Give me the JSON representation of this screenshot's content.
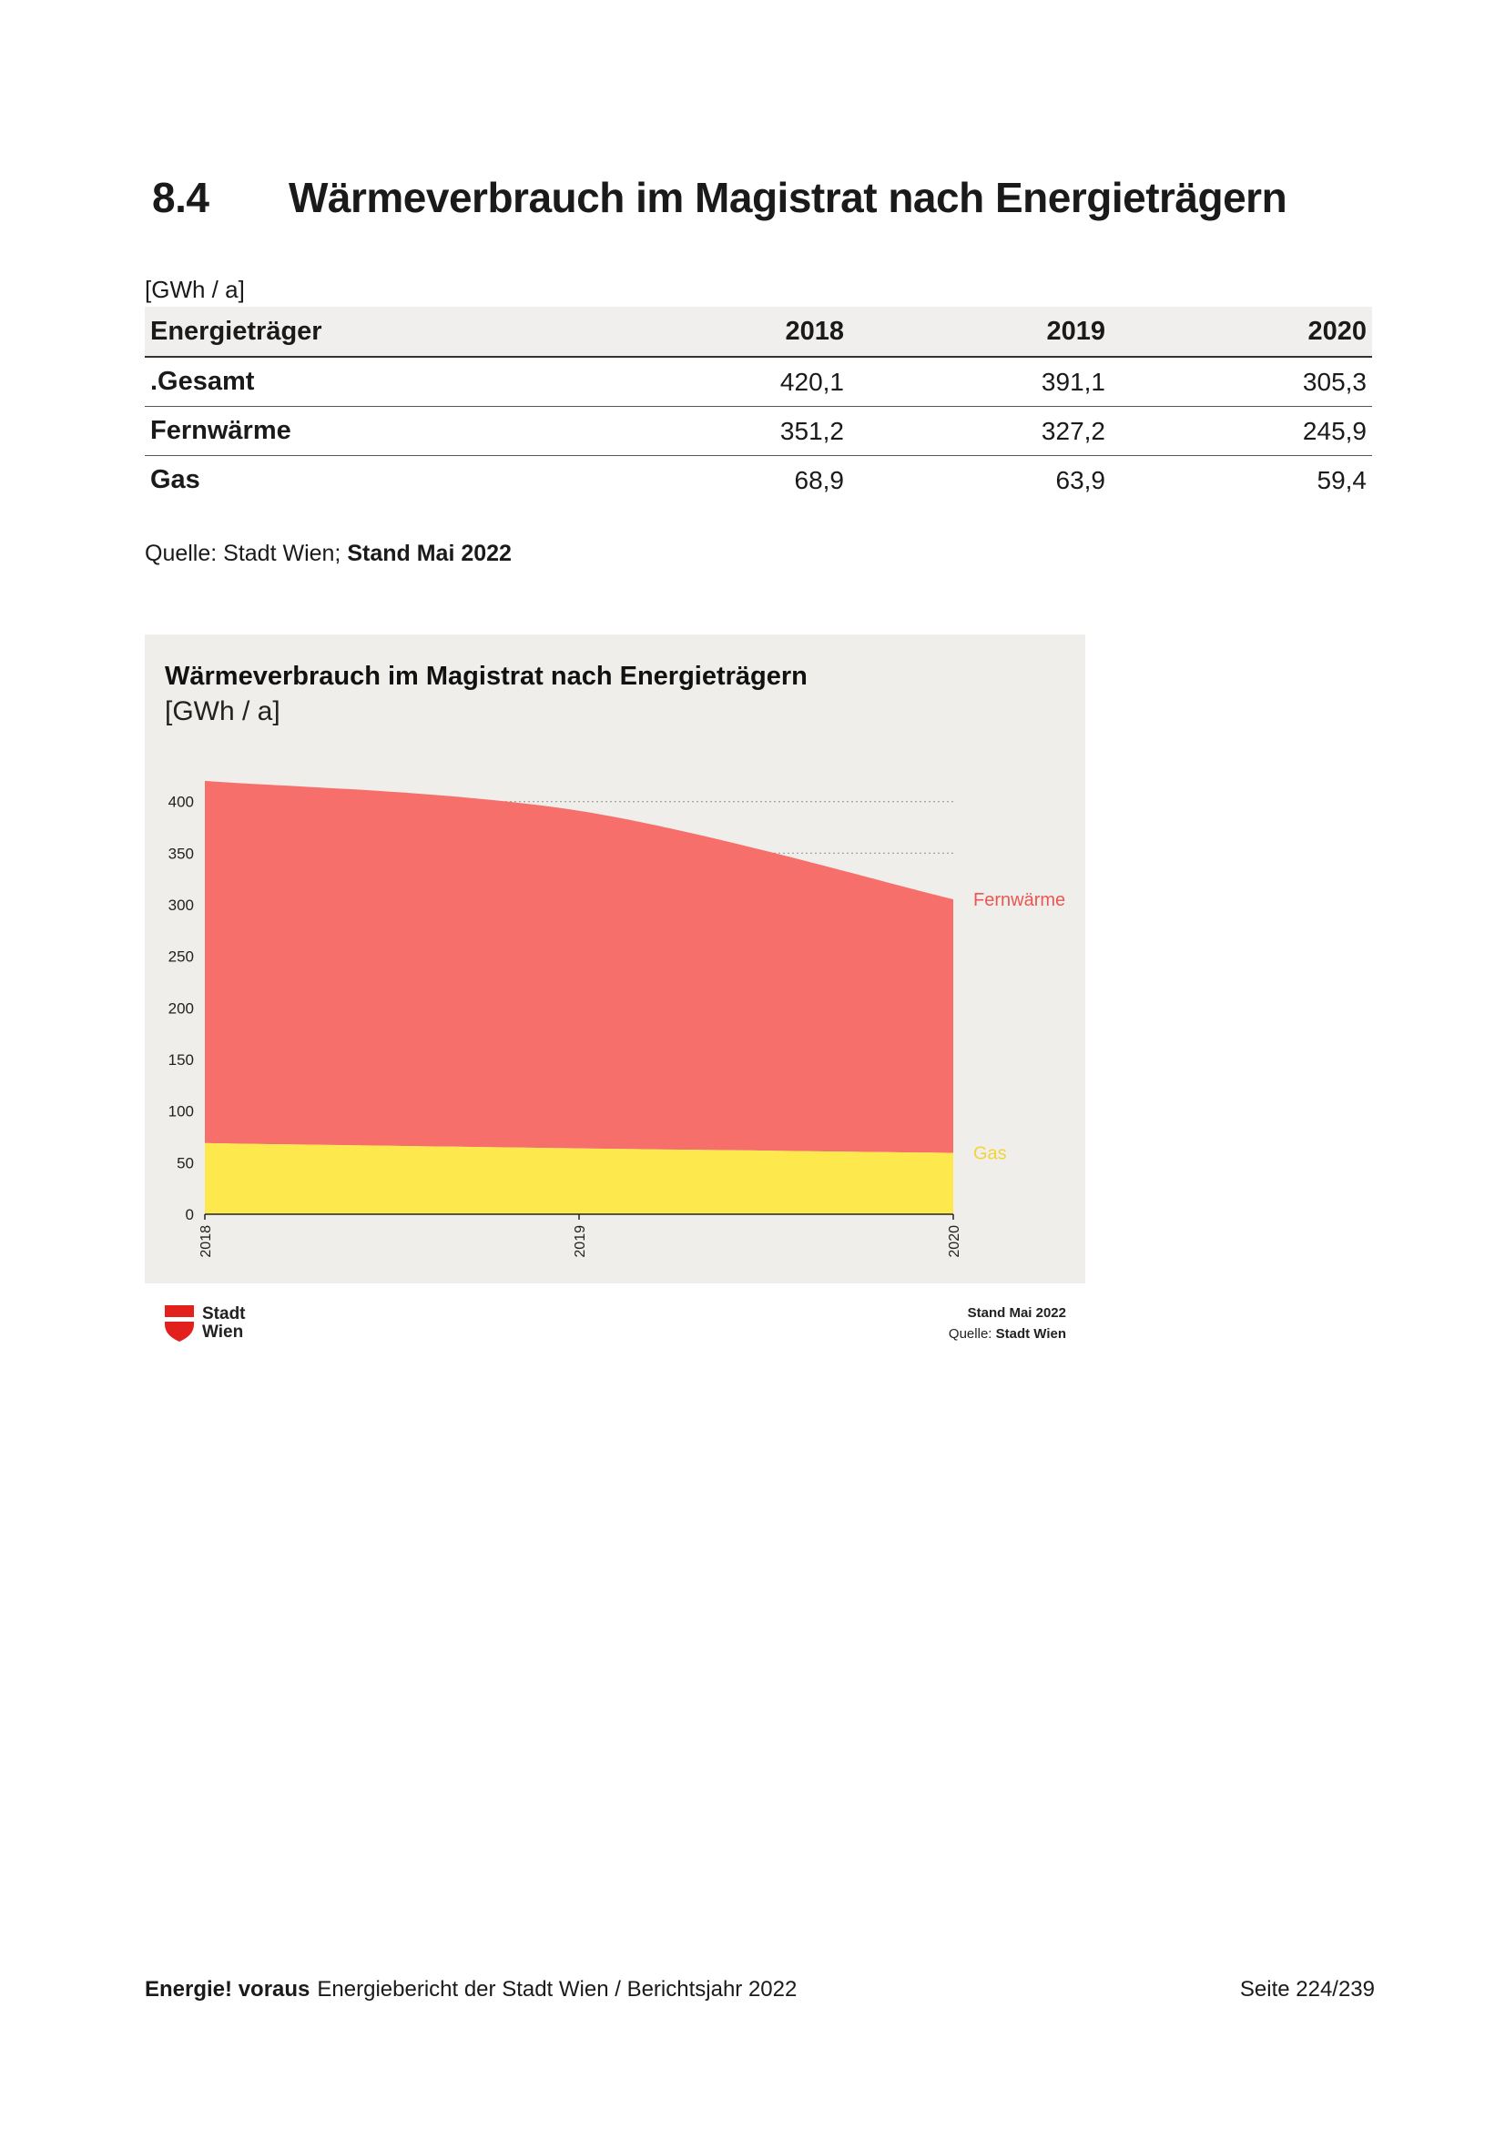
{
  "section": {
    "number": "8.4",
    "title": "Wärmeverbrauch im Magistrat nach Energieträgern"
  },
  "table": {
    "unit": "[GWh / a]",
    "headers": [
      "Energieträger",
      "2018",
      "2019",
      "2020"
    ],
    "rows": [
      [
        ".Gesamt",
        "420,1",
        "391,1",
        "305,3"
      ],
      [
        "Fernwärme",
        "351,2",
        "327,2",
        "245,9"
      ],
      [
        "Gas",
        "68,9",
        "63,9",
        "59,4"
      ]
    ]
  },
  "source": {
    "prefix": "Quelle: Stadt Wien; ",
    "date": "Stand Mai 2022"
  },
  "chart_data": {
    "type": "area",
    "title": "Wärmeverbrauch im Magistrat nach Energieträgern",
    "subtitle": "[GWh / a]",
    "x": [
      "2018",
      "2019",
      "2020"
    ],
    "stacked": true,
    "series": [
      {
        "name": "Gas",
        "values": [
          68.9,
          63.9,
          59.4
        ],
        "color": "#fde94e"
      },
      {
        "name": "Fernwärme",
        "values": [
          351.2,
          327.2,
          245.9
        ],
        "color": "#f76f6a"
      }
    ],
    "yticks": [
      "0",
      "50",
      "100",
      "150",
      "200",
      "250",
      "300",
      "350",
      "400"
    ],
    "ylim": [
      0,
      420
    ],
    "legend": "right",
    "background": "#efeeea",
    "logo_text": [
      "Stadt",
      "Wien"
    ],
    "stand": "Stand Mai 2022",
    "quelle_label": "Quelle:",
    "quelle_value": "Stadt Wien"
  },
  "footer": {
    "brand": "Energie! voraus",
    "text": "Energiebericht der Stadt Wien / Berichtsjahr 2022",
    "page": "Seite 224/239"
  }
}
